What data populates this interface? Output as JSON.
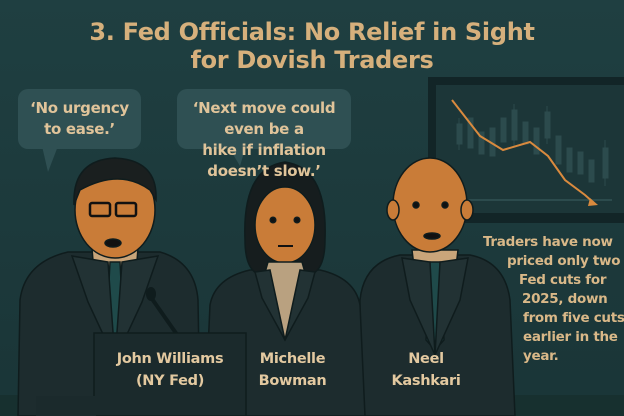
{
  "title": {
    "line1": "3. Fed Officials: No Relief in Sight",
    "line2": "for Dovish Traders"
  },
  "quotes": [
    {
      "line1": "‘No urgency",
      "line2": "to ease.’"
    },
    {
      "line1": "‘Next move could even be a",
      "line2": "hike if inflation doesn’t slow.’"
    }
  ],
  "officials": [
    {
      "line1": "John Williams",
      "line2": "(NY Fed)"
    },
    {
      "line1": "Michelle",
      "line2": "Bowman"
    },
    {
      "line1": "Neel",
      "line2": "Kashkari"
    }
  ],
  "note": [
    "Traders have now",
    "priced only two",
    "Fed cuts for",
    "2025, down",
    "from five cuts",
    "earlier in the",
    "year."
  ],
  "colors": {
    "background": "#1e3b3d",
    "accent": "#d6b07c",
    "trend_line": "#d98a3e"
  }
}
